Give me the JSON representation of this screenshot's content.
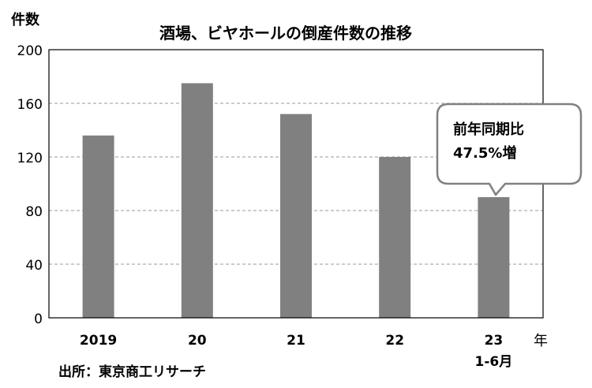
{
  "chart_data": {
    "type": "bar",
    "title": "酒場、ビヤホールの倒産件数の推移",
    "ylabel": "件数",
    "xlabel": "年",
    "categories": [
      "2019",
      "20",
      "21",
      "22",
      "23\n1-6月"
    ],
    "category_lines": [
      [
        "2019"
      ],
      [
        "20"
      ],
      [
        "21"
      ],
      [
        "22"
      ],
      [
        "23",
        "1-6月"
      ]
    ],
    "values": [
      136,
      175,
      152,
      120,
      90
    ],
    "ylim": [
      0,
      200
    ],
    "yticks": [
      0,
      40,
      80,
      120,
      160,
      200
    ],
    "grid": "dashed horizontal",
    "bar_color": "#808080",
    "callout": {
      "lines": [
        "前年同期比",
        "47.5%増"
      ],
      "target_category": "23\n1-6月"
    },
    "source": "出所：東京商工リサーチ"
  }
}
